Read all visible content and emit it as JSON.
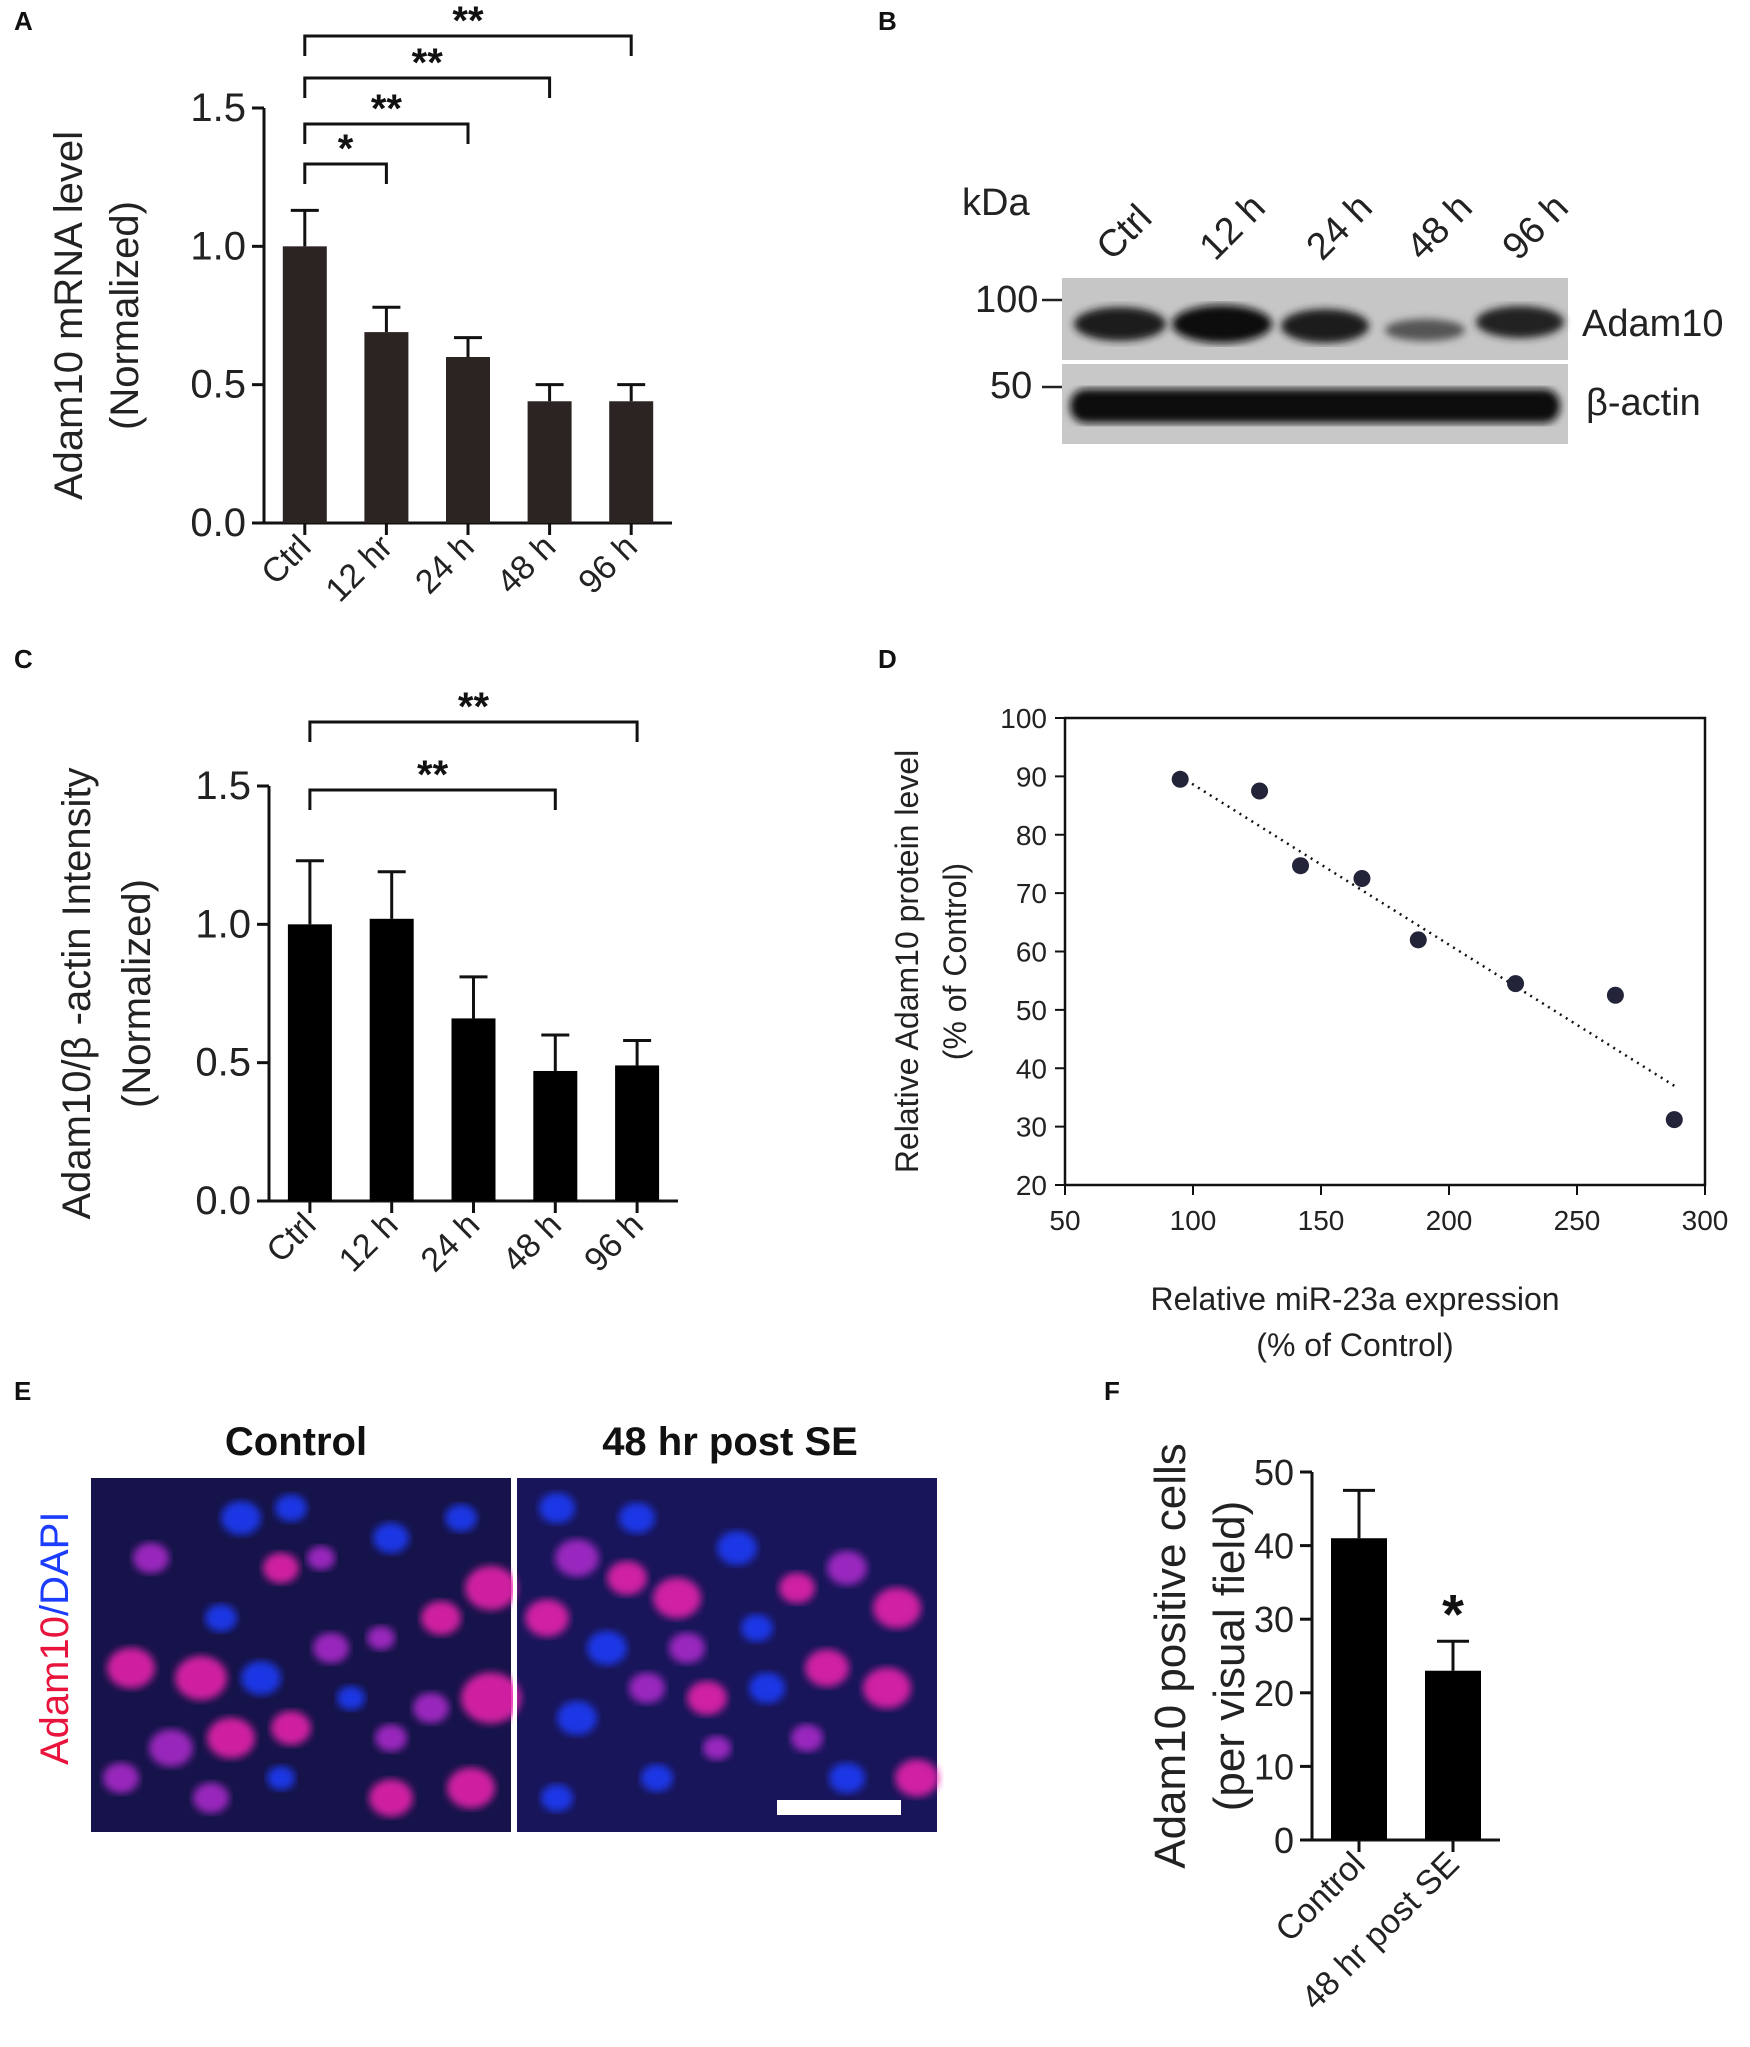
{
  "panels": {
    "A": {
      "letter": "A"
    },
    "B": {
      "letter": "B"
    },
    "C": {
      "letter": "C"
    },
    "D": {
      "letter": "D"
    },
    "E": {
      "letter": "E"
    },
    "F": {
      "letter": "F"
    }
  },
  "western_blot": {
    "kda_label": "kDa",
    "lanes": [
      "Ctrl",
      "12 h",
      "24 h",
      "48 h",
      "96 h"
    ],
    "markers": [
      "100",
      "50"
    ],
    "bands": [
      "Adam10",
      "β-actin"
    ]
  },
  "micrograph": {
    "stain_label_red": "Adam10",
    "stain_label_sep": "/",
    "stain_label_blue": "DAPI",
    "titles": [
      "Control",
      "48 hr post SE"
    ],
    "colors": {
      "red_stain": "#e8143c",
      "blue_stain": "#1c3cff"
    }
  },
  "chart_data": [
    {
      "panel": "A",
      "type": "bar",
      "categories": [
        "Ctrl",
        "12 hr",
        "24 h",
        "48 h",
        "96 h"
      ],
      "values": [
        1.0,
        0.69,
        0.6,
        0.44,
        0.44
      ],
      "errors": [
        0.13,
        0.09,
        0.07,
        0.06,
        0.06
      ],
      "ylabel": [
        "Adam10 mRNA level",
        "(Normalized)"
      ],
      "ylim": [
        0,
        1.5
      ],
      "yticks": [
        "0.0",
        "0.5",
        "1.0",
        "1.5"
      ],
      "bar_color": "#2b2422",
      "significance": [
        {
          "from": "Ctrl",
          "to": "12 hr",
          "label": "*"
        },
        {
          "from": "Ctrl",
          "to": "24 h",
          "label": "**"
        },
        {
          "from": "Ctrl",
          "to": "48 h",
          "label": "**"
        },
        {
          "from": "Ctrl",
          "to": "96 h",
          "label": "**"
        }
      ]
    },
    {
      "panel": "C",
      "type": "bar",
      "categories": [
        "Ctrl",
        "12 h",
        "24 h",
        "48 h",
        "96 h"
      ],
      "values": [
        1.0,
        1.02,
        0.66,
        0.47,
        0.49
      ],
      "errors": [
        0.23,
        0.17,
        0.15,
        0.13,
        0.09
      ],
      "ylabel": [
        "Adam10/β -actin Intensity",
        "(Normalized)"
      ],
      "ylim": [
        0,
        1.5
      ],
      "yticks": [
        "0.0",
        "0.5",
        "1.0",
        "1.5"
      ],
      "bar_color": "#000000",
      "significance": [
        {
          "from": "Ctrl",
          "to": "48 h",
          "label": "**"
        },
        {
          "from": "Ctrl",
          "to": "96 h",
          "label": "**"
        }
      ]
    },
    {
      "panel": "D",
      "type": "scatter",
      "x": [
        95,
        126,
        142,
        166,
        188,
        226,
        265,
        288
      ],
      "y": [
        89.5,
        87.5,
        74.7,
        72.5,
        62,
        54.5,
        52.5,
        31.2
      ],
      "trendline": {
        "x": [
          95,
          288
        ],
        "y": [
          90,
          37
        ],
        "style": "dotted"
      },
      "xlabel": [
        "Relative miR-23a expression",
        "(% of Control)"
      ],
      "ylabel": [
        "Relative Adam10 protein level",
        "(% of Control)"
      ],
      "xlim": [
        50,
        300
      ],
      "ylim": [
        20,
        100
      ],
      "xticks": [
        "50",
        "100",
        "150",
        "200",
        "250",
        "300"
      ],
      "yticks": [
        "20",
        "30",
        "40",
        "50",
        "60",
        "70",
        "80",
        "90",
        "100"
      ],
      "marker_color": "#23233a"
    },
    {
      "panel": "F",
      "type": "bar",
      "categories": [
        "Control",
        "48 hr post SE"
      ],
      "values": [
        41,
        23
      ],
      "errors": [
        6.5,
        4
      ],
      "ylabel": [
        "Adam10 positive cells",
        "(per visual field)"
      ],
      "ylim": [
        0,
        50
      ],
      "yticks": [
        "0",
        "10",
        "20",
        "30",
        "40",
        "50"
      ],
      "bar_color": "#000000",
      "significance": [
        {
          "over": "48 hr post SE",
          "label": "*"
        }
      ]
    }
  ]
}
